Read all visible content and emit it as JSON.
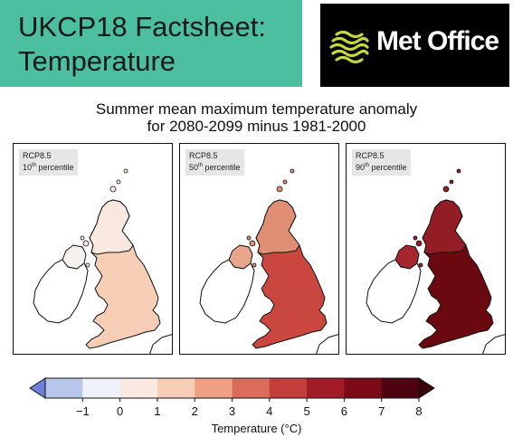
{
  "header": {
    "title_line1": "UKCP18 Factsheet:",
    "title_line2": "Temperature",
    "logo_text": "Met Office",
    "teal": "#4dbfa1"
  },
  "chart_title": {
    "line1": "Summer mean maximum temperature anomaly",
    "line2": "for 2080-2099 minus 1981-2000"
  },
  "panels": [
    {
      "scenario": "RCP8.5",
      "pct": "10",
      "suffix": "th",
      "word": "percentile",
      "fill": "#f6cdb5",
      "fill_north": "#f9e8df",
      "fill_ni": "#f4f0ee"
    },
    {
      "scenario": "RCP8.5",
      "pct": "50",
      "suffix": "th",
      "word": "percentile",
      "fill": "#c9473f",
      "fill_north": "#e08f74",
      "fill_ni": "#e7a58c"
    },
    {
      "scenario": "RCP8.5",
      "pct": "90",
      "suffix": "th",
      "word": "percentile",
      "fill": "#6a0a10",
      "fill_north": "#921d24",
      "fill_ni": "#a5262c"
    }
  ],
  "colorbar": {
    "ticks": [
      "−1",
      "0",
      "1",
      "2",
      "3",
      "4",
      "5",
      "6",
      "7",
      "8"
    ],
    "colors": [
      "#b8c6ec",
      "#eef1fa",
      "#fbeae2",
      "#f8cdb5",
      "#ef9f82",
      "#da6c5a",
      "#c23f3c",
      "#a21c27",
      "#7d0a17",
      "#4e0312"
    ],
    "unit": "Temperature (°C)"
  }
}
